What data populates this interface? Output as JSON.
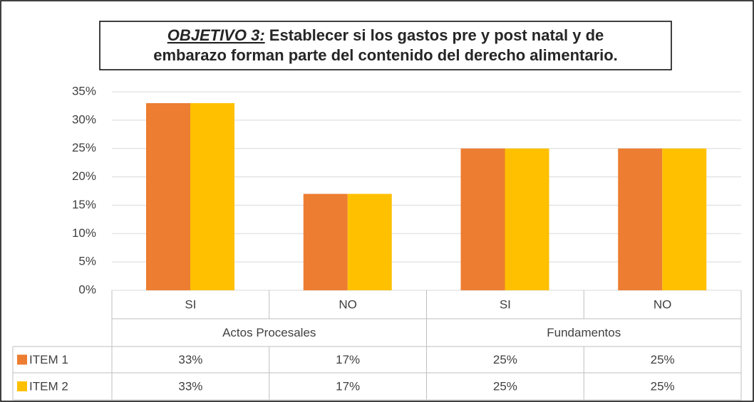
{
  "chart_data": {
    "type": "bar",
    "title": {
      "label": "OBJETIVO 3:",
      "lines": [
        "Establecer si los gastos pre y post natal y de",
        "embarazo forman parte del contenido del derecho alimentario."
      ]
    },
    "categories": [
      "SI",
      "NO",
      "SI",
      "NO"
    ],
    "groups": [
      "Actos Procesales",
      "Fundamentos"
    ],
    "series": [
      {
        "name": "ITEM 1",
        "color": "#ed7d31",
        "values": [
          33,
          17,
          25,
          25
        ],
        "value_labels": [
          "33%",
          "17%",
          "25%",
          "25%"
        ]
      },
      {
        "name": "ITEM 2",
        "color": "#ffc000",
        "values": [
          33,
          17,
          25,
          25
        ],
        "value_labels": [
          "33%",
          "17%",
          "25%",
          "25%"
        ]
      }
    ],
    "ylim": [
      0,
      35
    ],
    "yticks": [
      {
        "value": 0,
        "label": "0%"
      },
      {
        "value": 5,
        "label": "5%"
      },
      {
        "value": 10,
        "label": "10%"
      },
      {
        "value": 15,
        "label": "15%"
      },
      {
        "value": 20,
        "label": "20%"
      },
      {
        "value": 25,
        "label": "25%"
      },
      {
        "value": 30,
        "label": "30%"
      },
      {
        "value": 35,
        "label": "35%"
      }
    ],
    "grid": true
  }
}
